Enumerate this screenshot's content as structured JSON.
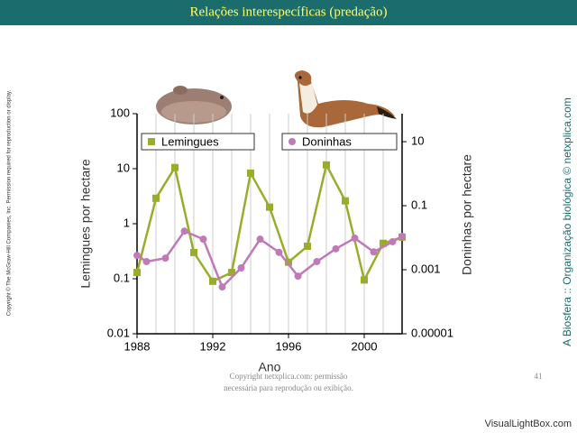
{
  "slide_title": "Relações interespecíficas (predação)",
  "side_left": "Copyright © The McGraw-Hill Companies, Inc. Permission required for reproduction or display.",
  "side_right": "A Biosfera :: Organização biológica © netxplica.com",
  "footer": [
    "Copyright netxplica.com: permissão",
    "necessária para reprodução ou exibição."
  ],
  "page_number": "41",
  "watermark": "VisualLightBox.com",
  "chart_data": {
    "type": "line",
    "x_label": "Ano",
    "y_label": "Lemingues por hectare",
    "y2_label": "Doninhas por hectare",
    "xlim": [
      1988,
      2002
    ],
    "xticks": [
      1988,
      1992,
      1996,
      2000
    ],
    "ylim": [
      0.01,
      100
    ],
    "yticks": [
      0.01,
      0.1,
      1,
      10,
      100
    ],
    "log_y": true,
    "y2lim": [
      1e-05,
      75
    ],
    "y2ticks": [
      1e-05,
      0.001,
      0.1,
      10
    ],
    "log_y2": true,
    "series": [
      {
        "name": "Lemingues",
        "color": "#9aac2c",
        "marker": "square",
        "x": [
          1988,
          1989,
          1990,
          1991,
          1992,
          1993,
          1994,
          1995,
          1996,
          1997,
          1998,
          1999,
          2000,
          2001,
          2002
        ],
        "values": [
          0.13,
          2.9,
          10.5,
          0.3,
          0.09,
          0.13,
          8.3,
          2,
          0.2,
          0.39,
          11.7,
          2.6,
          0.095,
          0.44,
          0.57
        ]
      },
      {
        "name": "Doninhas",
        "color": "#c07ab8",
        "marker": "circle",
        "axis": "y2",
        "x": [
          1988,
          1988.5,
          1989.5,
          1990.5,
          1991.5,
          1992.5,
          1993.5,
          1994.5,
          1995.5,
          1996.5,
          1997.5,
          1998.5,
          1999.5,
          2000.5,
          2001.5,
          2002
        ],
        "values": [
          0.0028,
          0.0018,
          0.0023,
          0.016,
          0.009,
          0.00029,
          0.00114,
          0.009,
          0.0035,
          0.00063,
          0.0018,
          0.0045,
          0.0097,
          0.0036,
          0.0075,
          0.011
        ]
      }
    ]
  }
}
